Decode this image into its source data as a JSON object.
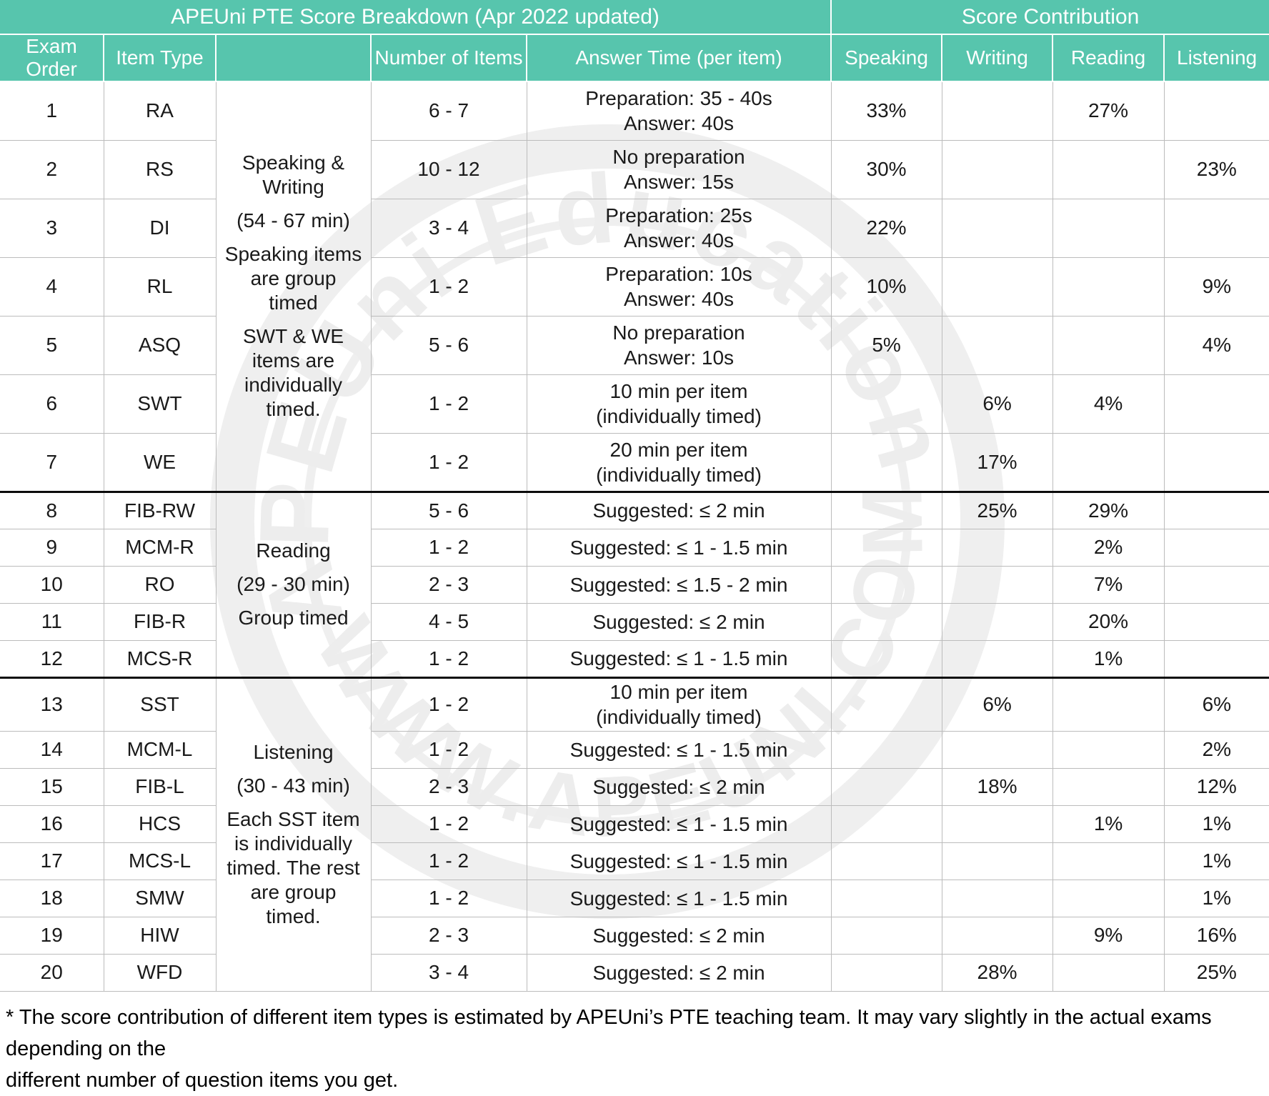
{
  "chart_data": {
    "type": "table",
    "title": "APEUni PTE Score Breakdown  (Apr 2022 updated)",
    "score_contribution_label": "Score Contribution",
    "columns": [
      "Exam Order",
      "Item Type",
      "",
      "Number of Items",
      "Answer Time (per item)",
      "Speaking",
      "Writing",
      "Reading",
      "Listening"
    ],
    "sections": [
      {
        "name": "Speaking & Writing",
        "info_lines": [
          "Speaking & Writing",
          "(54 - 67 min)",
          "Speaking items are group timed",
          "SWT & WE items are individually timed."
        ],
        "rows": [
          {
            "order": "1",
            "item": "RA",
            "count": "6 - 7",
            "time": [
              "Preparation: 35 - 40s",
              "Answer: 40s"
            ],
            "speaking": "33%",
            "writing": "",
            "reading": "27%",
            "listening": ""
          },
          {
            "order": "2",
            "item": "RS",
            "count": "10 - 12",
            "time": [
              "No preparation",
              "Answer: 15s"
            ],
            "speaking": "30%",
            "writing": "",
            "reading": "",
            "listening": "23%"
          },
          {
            "order": "3",
            "item": "DI",
            "count": "3 - 4",
            "time": [
              "Preparation: 25s",
              "Answer: 40s"
            ],
            "speaking": "22%",
            "writing": "",
            "reading": "",
            "listening": ""
          },
          {
            "order": "4",
            "item": "RL",
            "count": "1 - 2",
            "time": [
              "Preparation: 10s",
              "Answer: 40s"
            ],
            "speaking": "10%",
            "writing": "",
            "reading": "",
            "listening": "9%"
          },
          {
            "order": "5",
            "item": "ASQ",
            "count": "5 - 6",
            "time": [
              "No preparation",
              "Answer: 10s"
            ],
            "speaking": "5%",
            "writing": "",
            "reading": "",
            "listening": "4%"
          },
          {
            "order": "6",
            "item": "SWT",
            "count": "1 - 2",
            "time": [
              "10 min per item",
              "(individually timed)"
            ],
            "speaking": "",
            "writing": "6%",
            "reading": "4%",
            "listening": ""
          },
          {
            "order": "7",
            "item": "WE",
            "count": "1 - 2",
            "time": [
              "20 min per item",
              "(individually timed)"
            ],
            "speaking": "",
            "writing": "17%",
            "reading": "",
            "listening": ""
          }
        ]
      },
      {
        "name": "Reading",
        "info_lines": [
          "Reading",
          "(29 - 30 min)",
          "Group timed"
        ],
        "rows": [
          {
            "order": "8",
            "item": "FIB-RW",
            "count": "5 - 6",
            "time": [
              "Suggested: ≤ 2 min"
            ],
            "speaking": "",
            "writing": "25%",
            "reading": "29%",
            "listening": ""
          },
          {
            "order": "9",
            "item": "MCM-R",
            "count": "1 - 2",
            "time": [
              "Suggested: ≤ 1 - 1.5 min"
            ],
            "speaking": "",
            "writing": "",
            "reading": "2%",
            "listening": ""
          },
          {
            "order": "10",
            "item": "RO",
            "count": "2 - 3",
            "time": [
              "Suggested: ≤ 1.5 - 2 min"
            ],
            "speaking": "",
            "writing": "",
            "reading": "7%",
            "listening": ""
          },
          {
            "order": "11",
            "item": "FIB-R",
            "count": "4 - 5",
            "time": [
              "Suggested: ≤ 2 min"
            ],
            "speaking": "",
            "writing": "",
            "reading": "20%",
            "listening": ""
          },
          {
            "order": "12",
            "item": "MCS-R",
            "count": "1 - 2",
            "time": [
              "Suggested: ≤ 1 - 1.5 min"
            ],
            "speaking": "",
            "writing": "",
            "reading": "1%",
            "listening": ""
          }
        ]
      },
      {
        "name": "Listening",
        "info_lines": [
          "Listening",
          "(30 - 43 min)",
          "Each SST item is individually timed. The rest are group timed."
        ],
        "rows": [
          {
            "order": "13",
            "item": "SST",
            "count": "1 - 2",
            "time": [
              "10 min per item",
              "(individually timed)"
            ],
            "speaking": "",
            "writing": "6%",
            "reading": "",
            "listening": "6%"
          },
          {
            "order": "14",
            "item": "MCM-L",
            "count": "1 - 2",
            "time": [
              "Suggested: ≤ 1 - 1.5 min"
            ],
            "speaking": "",
            "writing": "",
            "reading": "",
            "listening": "2%"
          },
          {
            "order": "15",
            "item": "FIB-L",
            "count": "2 - 3",
            "time": [
              "Suggested: ≤ 2 min"
            ],
            "speaking": "",
            "writing": "18%",
            "reading": "",
            "listening": "12%"
          },
          {
            "order": "16",
            "item": "HCS",
            "count": "1 - 2",
            "time": [
              "Suggested: ≤ 1 - 1.5 min"
            ],
            "speaking": "",
            "writing": "",
            "reading": "1%",
            "listening": "1%"
          },
          {
            "order": "17",
            "item": "MCS-L",
            "count": "1 - 2",
            "time": [
              "Suggested: ≤ 1 - 1.5 min"
            ],
            "speaking": "",
            "writing": "",
            "reading": "",
            "listening": "1%"
          },
          {
            "order": "18",
            "item": "SMW",
            "count": "1 - 2",
            "time": [
              "Suggested: ≤ 1 - 1.5 min"
            ],
            "speaking": "",
            "writing": "",
            "reading": "",
            "listening": "1%"
          },
          {
            "order": "19",
            "item": "HIW",
            "count": "2 - 3",
            "time": [
              "Suggested: ≤ 2 min"
            ],
            "speaking": "",
            "writing": "",
            "reading": "9%",
            "listening": "16%"
          },
          {
            "order": "20",
            "item": "WFD",
            "count": "3 - 4",
            "time": [
              "Suggested: ≤ 2 min"
            ],
            "speaking": "",
            "writing": "28%",
            "reading": "",
            "listening": "25%"
          }
        ]
      }
    ],
    "footnote_lines": [
      "* The score contribution of different item types is estimated by APEUni’s PTE teaching team. It may vary slightly in the actual exams depending on the",
      "different number of question items you get."
    ]
  },
  "watermark": {
    "arc_top": "APEUni Education",
    "arc_bottom": "WWW.APEUNI.COM"
  },
  "colors": {
    "header_teal": "#57C5AD",
    "grid_line": "#bcbcbc",
    "section_divider": "#0c0c0c",
    "text": "#1a1a1a",
    "watermark_gray": "#ededed"
  }
}
